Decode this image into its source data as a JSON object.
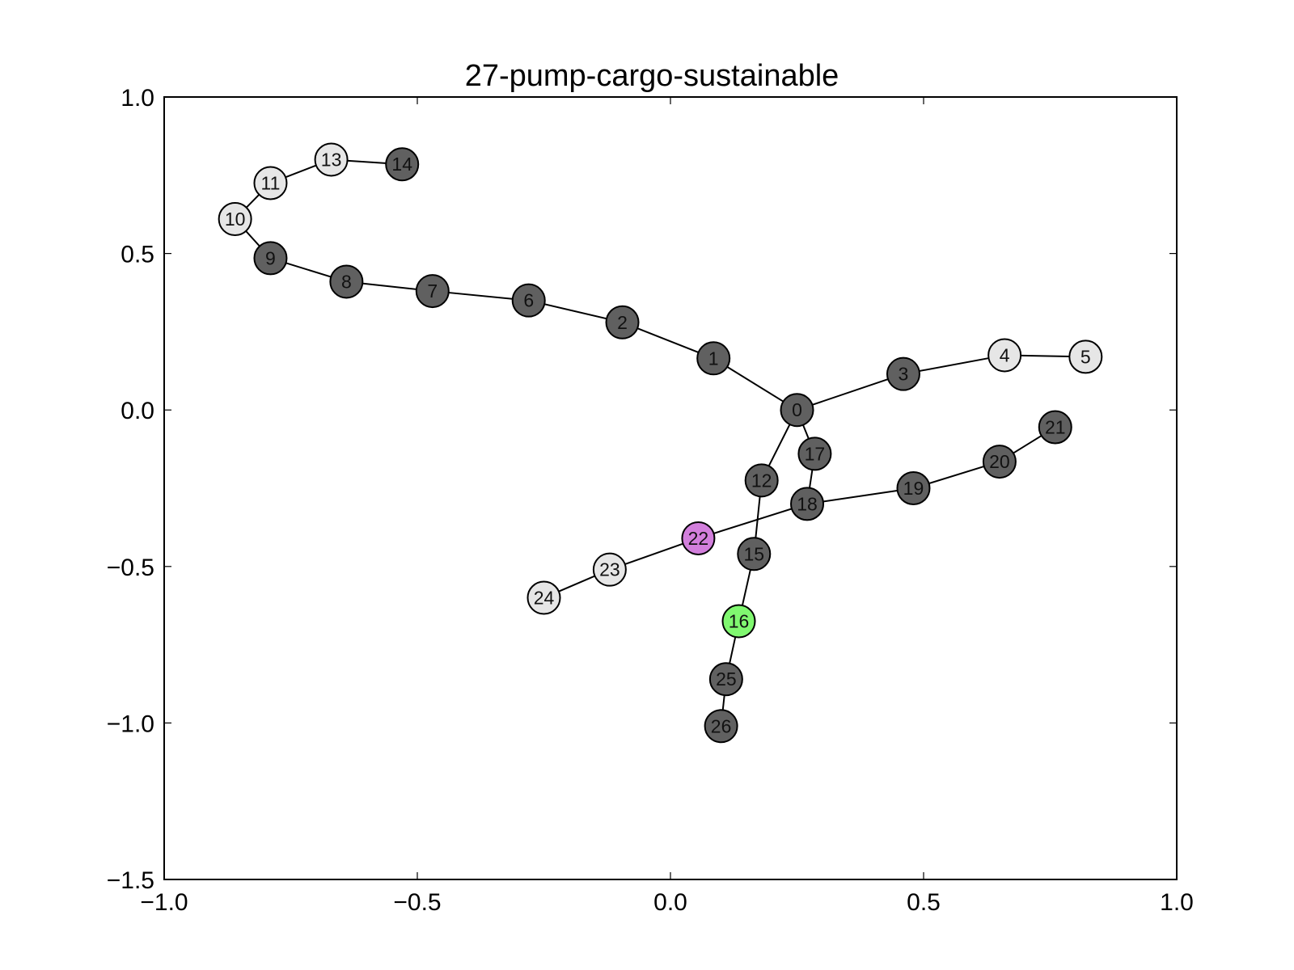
{
  "chart_data": {
    "type": "scatter",
    "title": "27-pump-cargo-sustainable",
    "xlabel": "",
    "ylabel": "",
    "xlim": [
      -1.0,
      1.0
    ],
    "ylim": [
      -1.5,
      1.0
    ],
    "grid": false,
    "xticks": [
      "−1.0",
      "−0.5",
      "0.0",
      "0.5",
      "1.0"
    ],
    "xtick_values": [
      -1.0,
      -0.5,
      0.0,
      0.5,
      1.0
    ],
    "yticks": [
      "1.0",
      "0.5",
      "0.0",
      "−0.5",
      "−1.0",
      "−1.5"
    ],
    "ytick_values": [
      1.0,
      0.5,
      0.0,
      -0.5,
      -1.0,
      -1.5
    ],
    "colors": {
      "dark": "#606060",
      "light": "#e6e6e6",
      "violet": "#d27fdc",
      "green": "#80f870",
      "edge": "#000000"
    },
    "nodes": [
      {
        "id": "0",
        "x": 0.25,
        "y": 0.0,
        "color": "dark"
      },
      {
        "id": "1",
        "x": 0.085,
        "y": 0.165,
        "color": "dark"
      },
      {
        "id": "2",
        "x": -0.095,
        "y": 0.28,
        "color": "dark"
      },
      {
        "id": "3",
        "x": 0.46,
        "y": 0.115,
        "color": "dark"
      },
      {
        "id": "4",
        "x": 0.66,
        "y": 0.175,
        "color": "light"
      },
      {
        "id": "5",
        "x": 0.82,
        "y": 0.17,
        "color": "light"
      },
      {
        "id": "6",
        "x": -0.28,
        "y": 0.35,
        "color": "dark"
      },
      {
        "id": "7",
        "x": -0.47,
        "y": 0.38,
        "color": "dark"
      },
      {
        "id": "8",
        "x": -0.64,
        "y": 0.41,
        "color": "dark"
      },
      {
        "id": "9",
        "x": -0.79,
        "y": 0.485,
        "color": "dark"
      },
      {
        "id": "10",
        "x": -0.86,
        "y": 0.61,
        "color": "light"
      },
      {
        "id": "11",
        "x": -0.79,
        "y": 0.725,
        "color": "light"
      },
      {
        "id": "12",
        "x": 0.18,
        "y": -0.225,
        "color": "dark"
      },
      {
        "id": "13",
        "x": -0.67,
        "y": 0.8,
        "color": "light"
      },
      {
        "id": "14",
        "x": -0.53,
        "y": 0.785,
        "color": "dark"
      },
      {
        "id": "15",
        "x": 0.165,
        "y": -0.46,
        "color": "dark"
      },
      {
        "id": "16",
        "x": 0.135,
        "y": -0.675,
        "color": "green"
      },
      {
        "id": "17",
        "x": 0.285,
        "y": -0.14,
        "color": "dark"
      },
      {
        "id": "18",
        "x": 0.27,
        "y": -0.3,
        "color": "dark"
      },
      {
        "id": "19",
        "x": 0.48,
        "y": -0.25,
        "color": "dark"
      },
      {
        "id": "20",
        "x": 0.65,
        "y": -0.165,
        "color": "dark"
      },
      {
        "id": "21",
        "x": 0.76,
        "y": -0.055,
        "color": "dark"
      },
      {
        "id": "22",
        "x": 0.055,
        "y": -0.41,
        "color": "violet"
      },
      {
        "id": "23",
        "x": -0.12,
        "y": -0.51,
        "color": "light"
      },
      {
        "id": "24",
        "x": -0.25,
        "y": -0.6,
        "color": "light"
      },
      {
        "id": "25",
        "x": 0.11,
        "y": -0.86,
        "color": "dark"
      },
      {
        "id": "26",
        "x": 0.1,
        "y": -1.01,
        "color": "dark"
      }
    ],
    "edges": [
      [
        "0",
        "1"
      ],
      [
        "1",
        "2"
      ],
      [
        "2",
        "6"
      ],
      [
        "6",
        "7"
      ],
      [
        "7",
        "8"
      ],
      [
        "8",
        "9"
      ],
      [
        "9",
        "10"
      ],
      [
        "10",
        "11"
      ],
      [
        "11",
        "13"
      ],
      [
        "13",
        "14"
      ],
      [
        "0",
        "3"
      ],
      [
        "3",
        "4"
      ],
      [
        "4",
        "5"
      ],
      [
        "0",
        "12"
      ],
      [
        "12",
        "15"
      ],
      [
        "15",
        "16"
      ],
      [
        "16",
        "25"
      ],
      [
        "25",
        "26"
      ],
      [
        "0",
        "17"
      ],
      [
        "17",
        "18"
      ],
      [
        "18",
        "19"
      ],
      [
        "19",
        "20"
      ],
      [
        "20",
        "21"
      ],
      [
        "18",
        "22"
      ],
      [
        "22",
        "23"
      ],
      [
        "23",
        "24"
      ]
    ]
  }
}
